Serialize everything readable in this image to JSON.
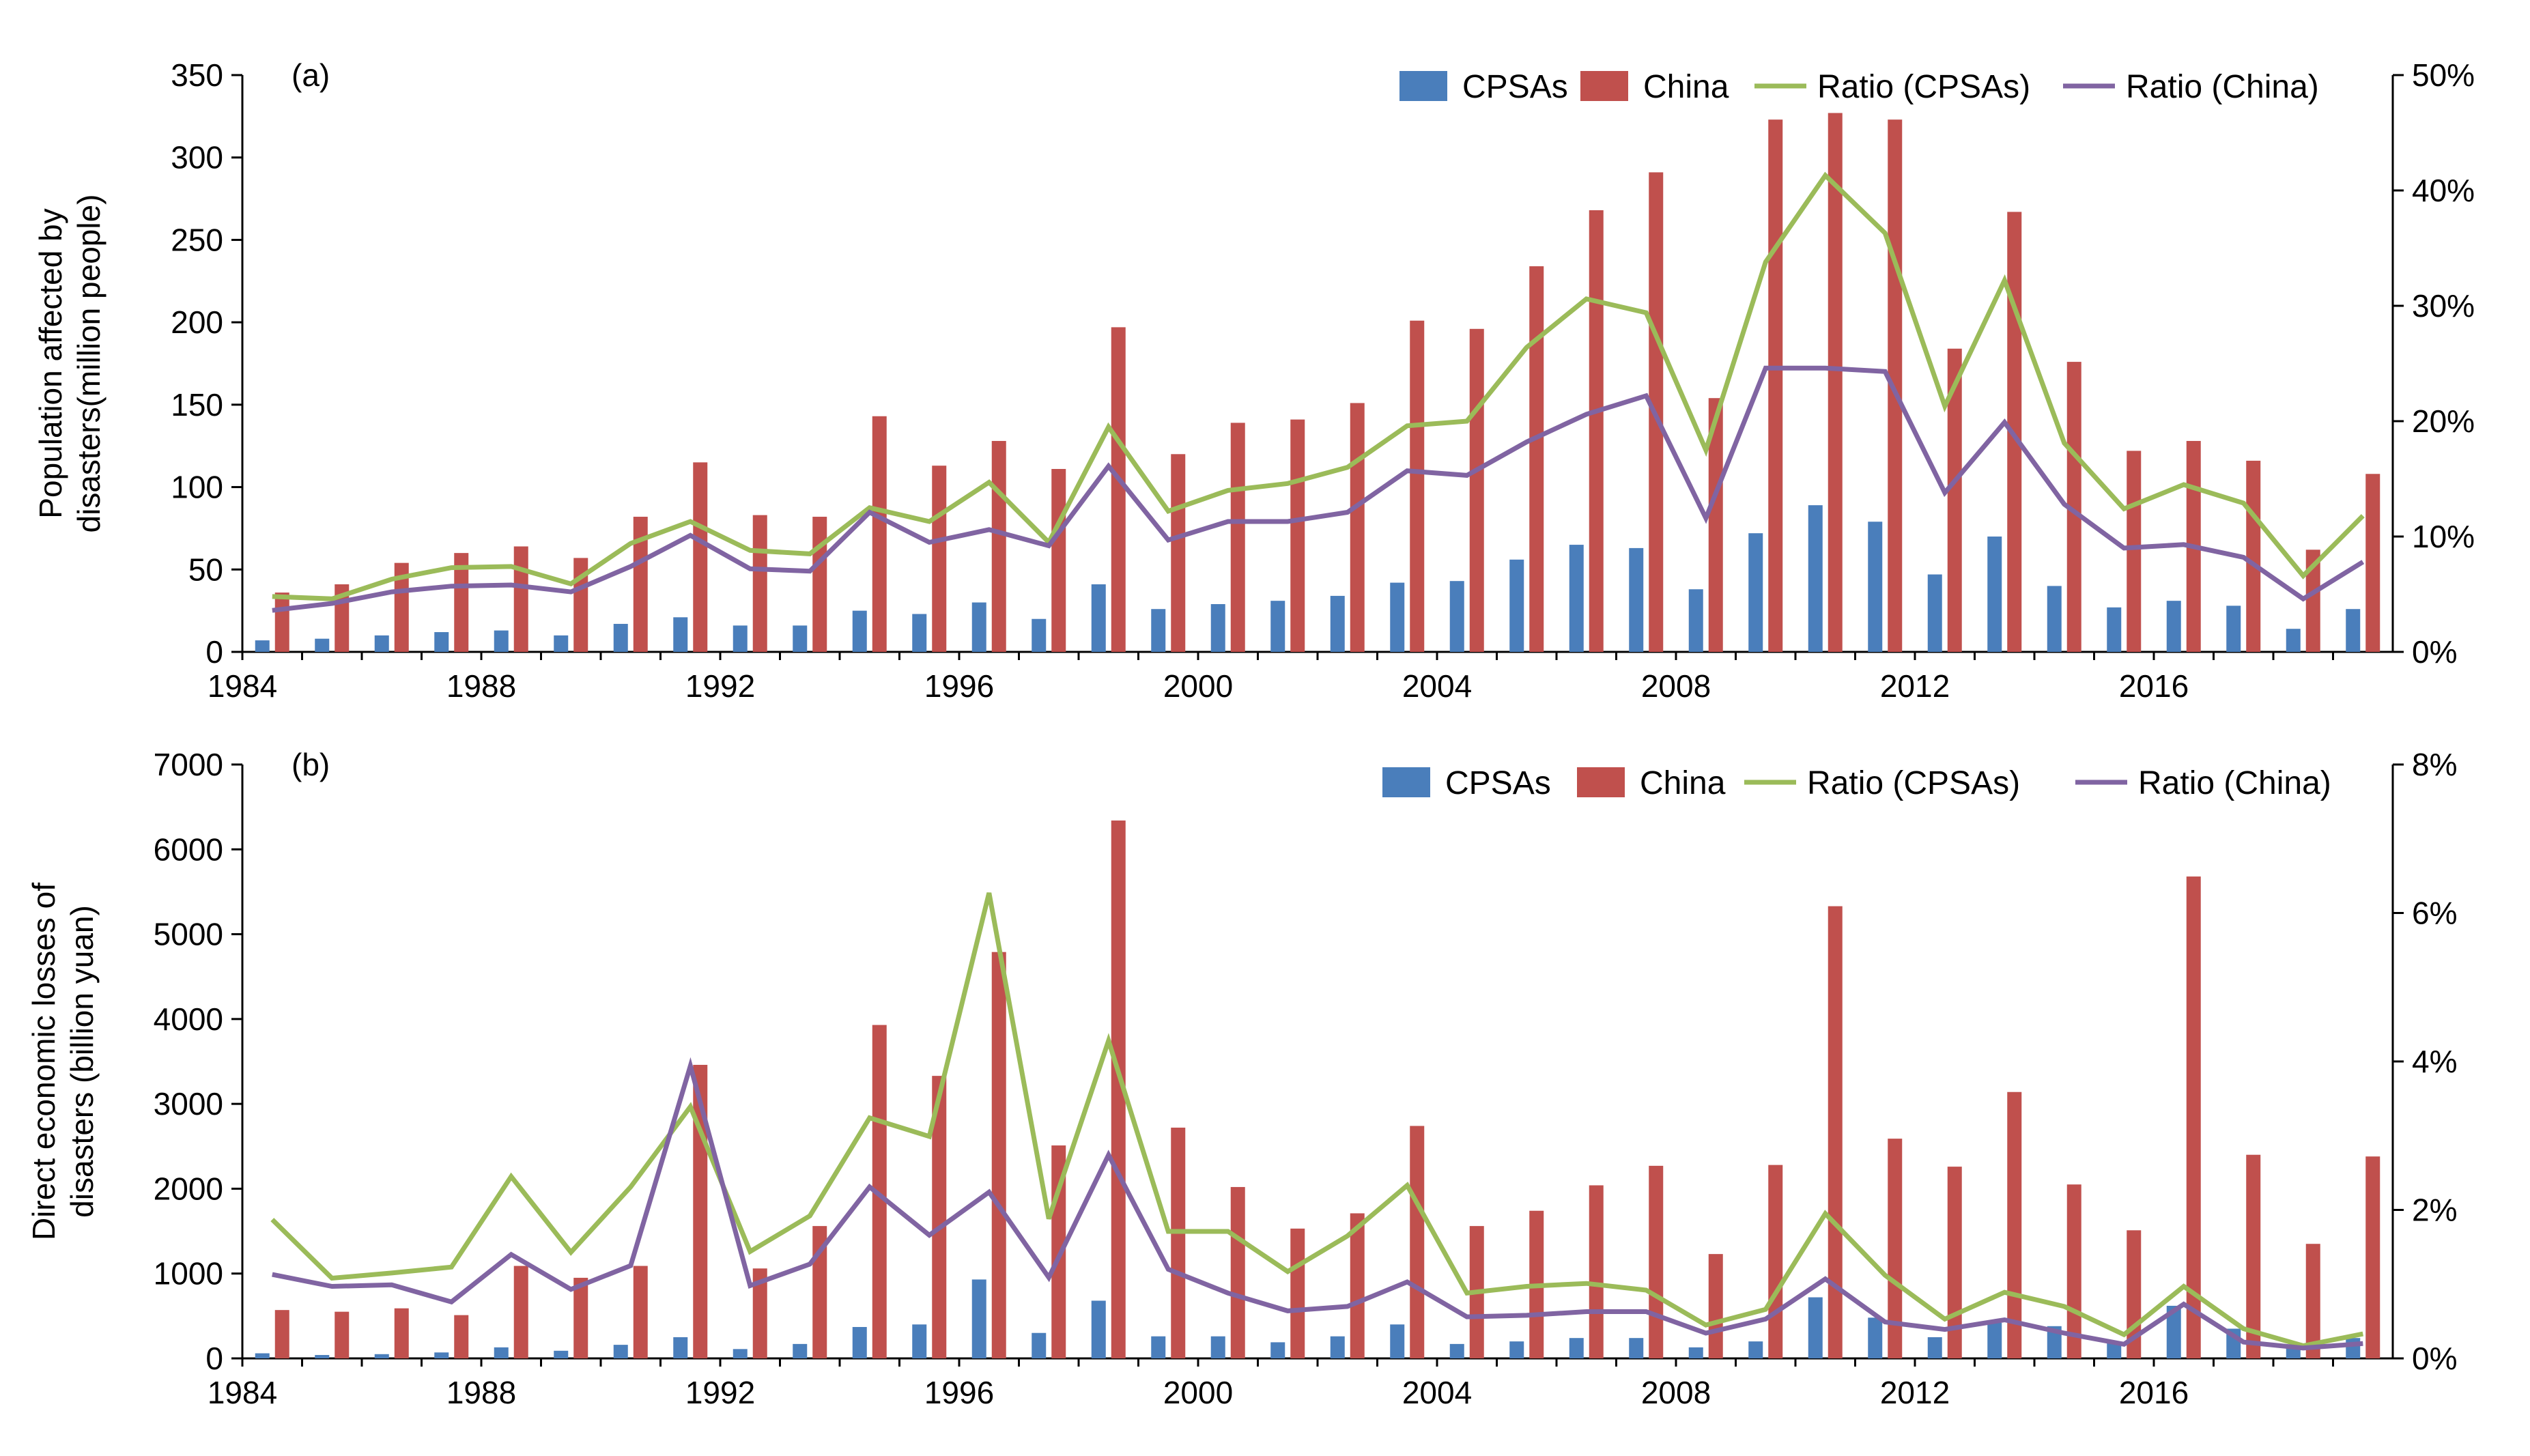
{
  "chart_data": [
    {
      "type": "bar",
      "panel_label": "(a)",
      "ylabel_lines": [
        "Population affected by",
        "disasters(million people)"
      ],
      "xlabel": "",
      "ylim": [
        0,
        350
      ],
      "yticks": [
        0,
        50,
        100,
        150,
        200,
        250,
        300,
        350
      ],
      "y2lim": [
        0,
        0.5
      ],
      "y2ticks": [
        "0%",
        "10%",
        "20%",
        "30%",
        "40%",
        "50%"
      ],
      "x": [
        1984,
        1985,
        1986,
        1987,
        1988,
        1989,
        1990,
        1991,
        1992,
        1993,
        1994,
        1995,
        1996,
        1997,
        1998,
        1999,
        2000,
        2001,
        2002,
        2003,
        2004,
        2005,
        2006,
        2007,
        2008,
        2009,
        2010,
        2011,
        2012,
        2013,
        2014,
        2015,
        2016,
        2017,
        2018,
        2019
      ],
      "xticks": [
        "1984",
        "1988",
        "1992",
        "1996",
        "2000",
        "2004",
        "2008",
        "2012",
        "2016"
      ],
      "legend": [
        "CPSAs",
        "China",
        "Ratio (CPSAs)",
        "Ratio (China)"
      ],
      "colors": {
        "cpsas": "#4a7ebb",
        "china": "#c0504d",
        "ratio_cpsas": "#9bbb59",
        "ratio_china": "#8064a2"
      },
      "series": [
        {
          "name": "CPSAs",
          "type": "bar",
          "axis": "left",
          "values": [
            7,
            8,
            10,
            12,
            13,
            10,
            17,
            21,
            16,
            16,
            25,
            23,
            30,
            20,
            41,
            26,
            29,
            31,
            34,
            42,
            43,
            56,
            65,
            63,
            38,
            72,
            89,
            79,
            47,
            70,
            40,
            27,
            31,
            28,
            14,
            26
          ]
        },
        {
          "name": "China",
          "type": "bar",
          "axis": "left",
          "values": [
            36,
            41,
            54,
            60,
            64,
            57,
            82,
            115,
            83,
            82,
            143,
            113,
            128,
            111,
            197,
            120,
            139,
            141,
            151,
            201,
            196,
            234,
            268,
            291,
            154,
            323,
            327,
            323,
            184,
            267,
            176,
            122,
            128,
            116,
            62,
            108
          ]
        },
        {
          "name": "Ratio (CPSAs)",
          "type": "line",
          "axis": "right",
          "values": [
            0.048,
            0.046,
            0.063,
            0.073,
            0.074,
            0.059,
            0.094,
            0.113,
            0.088,
            0.085,
            0.125,
            0.113,
            0.147,
            0.095,
            0.195,
            0.122,
            0.14,
            0.146,
            0.16,
            0.196,
            0.2,
            0.264,
            0.306,
            0.294,
            0.175,
            0.338,
            0.413,
            0.363,
            0.213,
            0.322,
            0.181,
            0.124,
            0.145,
            0.129,
            0.066,
            0.118
          ]
        },
        {
          "name": "Ratio (China)",
          "type": "line",
          "axis": "right",
          "values": [
            0.036,
            0.042,
            0.052,
            0.057,
            0.058,
            0.052,
            0.074,
            0.101,
            0.072,
            0.07,
            0.121,
            0.095,
            0.106,
            0.092,
            0.161,
            0.097,
            0.113,
            0.113,
            0.121,
            0.157,
            0.153,
            0.182,
            0.206,
            0.222,
            0.116,
            0.246,
            0.246,
            0.243,
            0.138,
            0.199,
            0.128,
            0.09,
            0.093,
            0.082,
            0.046,
            0.078
          ]
        }
      ]
    },
    {
      "type": "bar",
      "panel_label": "(b)",
      "ylabel_lines": [
        "Direct economic losses of",
        "disasters (billion yuan)"
      ],
      "xlabel": "",
      "ylim": [
        0,
        7000
      ],
      "yticks": [
        0,
        1000,
        2000,
        3000,
        4000,
        5000,
        6000,
        7000
      ],
      "y2lim": [
        0,
        0.08
      ],
      "y2ticks": [
        "0%",
        "2%",
        "4%",
        "6%",
        "8%"
      ],
      "x": [
        1984,
        1985,
        1986,
        1987,
        1988,
        1989,
        1990,
        1991,
        1992,
        1993,
        1994,
        1995,
        1996,
        1997,
        1998,
        1999,
        2000,
        2001,
        2002,
        2003,
        2004,
        2005,
        2006,
        2007,
        2008,
        2009,
        2010,
        2011,
        2012,
        2013,
        2014,
        2015,
        2016,
        2017,
        2018,
        2019
      ],
      "xticks": [
        "1984",
        "1988",
        "1992",
        "1996",
        "2000",
        "2004",
        "2008",
        "2012",
        "2016"
      ],
      "legend": [
        "CPSAs",
        "China",
        "Ratio (CPSAs)",
        "Ratio (China)"
      ],
      "colors": {
        "cpsas": "#4a7ebb",
        "china": "#c0504d",
        "ratio_cpsas": "#9bbb59",
        "ratio_china": "#8064a2"
      },
      "series": [
        {
          "name": "CPSAs",
          "type": "bar",
          "axis": "left",
          "values": [
            60,
            40,
            50,
            70,
            130,
            90,
            160,
            250,
            110,
            170,
            370,
            400,
            930,
            300,
            680,
            260,
            260,
            190,
            260,
            400,
            170,
            200,
            240,
            240,
            130,
            200,
            720,
            480,
            250,
            420,
            380,
            200,
            620,
            350,
            150,
            240
          ]
        },
        {
          "name": "China",
          "type": "bar",
          "axis": "left",
          "values": [
            570,
            550,
            590,
            510,
            1090,
            950,
            1090,
            3460,
            1060,
            1560,
            3930,
            3330,
            4790,
            2510,
            6340,
            2720,
            2020,
            1530,
            1710,
            2740,
            1560,
            1740,
            2040,
            2270,
            1230,
            2280,
            5330,
            2590,
            2260,
            3140,
            2050,
            1510,
            5680,
            2400,
            1350,
            2380
          ]
        },
        {
          "name": "Ratio (CPSAs)",
          "type": "line",
          "axis": "right",
          "values": [
            0.0187,
            0.0108,
            0.0115,
            0.0123,
            0.0245,
            0.0143,
            0.0231,
            0.0339,
            0.0144,
            0.0192,
            0.0324,
            0.0299,
            0.0627,
            0.0188,
            0.0428,
            0.0171,
            0.0171,
            0.0117,
            0.0165,
            0.0233,
            0.0088,
            0.0097,
            0.0101,
            0.0092,
            0.0045,
            0.0066,
            0.0195,
            0.0112,
            0.0053,
            0.0089,
            0.007,
            0.0032,
            0.0097,
            0.004,
            0.0017,
            0.0033
          ]
        },
        {
          "name": "Ratio (China)",
          "type": "line",
          "axis": "right",
          "values": [
            0.0113,
            0.0097,
            0.0099,
            0.0076,
            0.014,
            0.0093,
            0.0125,
            0.0394,
            0.0098,
            0.0127,
            0.0231,
            0.0166,
            0.0224,
            0.0109,
            0.0274,
            0.012,
            0.0088,
            0.0064,
            0.007,
            0.0103,
            0.0056,
            0.0058,
            0.0063,
            0.0063,
            0.0034,
            0.0053,
            0.0107,
            0.0049,
            0.0039,
            0.0052,
            0.0034,
            0.0019,
            0.0073,
            0.0022,
            0.0014,
            0.002
          ]
        }
      ]
    }
  ]
}
